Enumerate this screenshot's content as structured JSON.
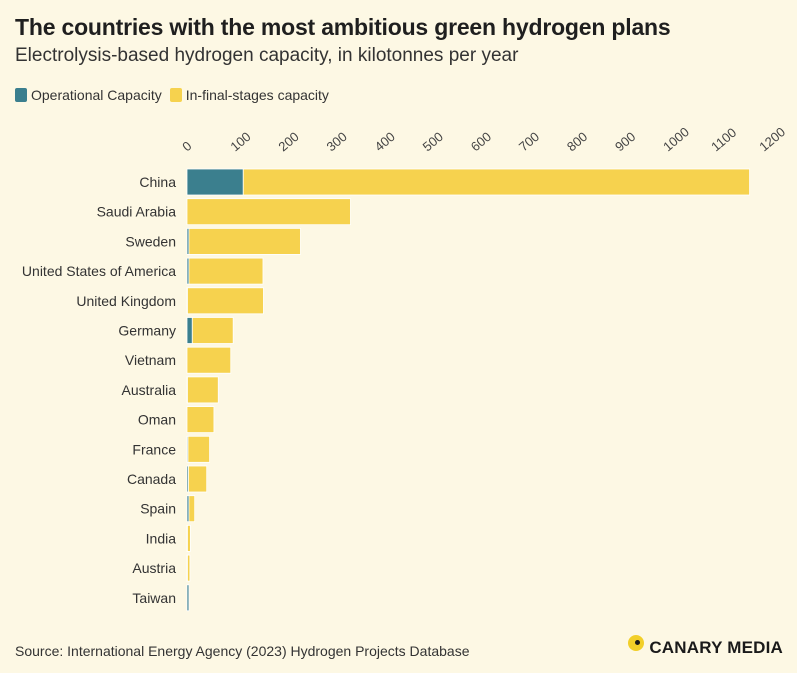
{
  "header": {
    "title": "The countries with the most ambitious green hydrogen plans",
    "subtitle": "Electrolysis-based hydrogen capacity, in kilotonnes per year"
  },
  "legend": {
    "operational": "Operational Capacity",
    "final": "In-final-stages capacity"
  },
  "colors": {
    "operational": "#3b7f8e",
    "final": "#f6d24e",
    "background": "#fdf8e4"
  },
  "chart_data": {
    "type": "bar",
    "orientation": "horizontal",
    "stacked": true,
    "categories": [
      "China",
      "Saudi Arabia",
      "Sweden",
      "United States of America",
      "United Kingdom",
      "Germany",
      "Vietnam",
      "Australia",
      "Oman",
      "France",
      "Canada",
      "Spain",
      "India",
      "Austria",
      "Taiwan"
    ],
    "series": [
      {
        "name": "Operational Capacity",
        "values": [
          117,
          0,
          4,
          4,
          1,
          11,
          0,
          1,
          0,
          2,
          3,
          4,
          1,
          1,
          4
        ]
      },
      {
        "name": "In-final-stages capacity",
        "values": [
          1053,
          340,
          232,
          154,
          158,
          85,
          91,
          64,
          56,
          45,
          38,
          12,
          6,
          5,
          0
        ]
      }
    ],
    "xlim": [
      0,
      1200
    ],
    "xticks": [
      "0",
      "100",
      "200",
      "300",
      "400",
      "500",
      "600",
      "700",
      "800",
      "900",
      "1000",
      "1100",
      "1200"
    ],
    "grid": false,
    "legend_position": "top-left"
  },
  "footer": {
    "source": "Source: International Energy Agency (2023) Hydrogen Projects Database",
    "brand": "CANARY MEDIA"
  }
}
